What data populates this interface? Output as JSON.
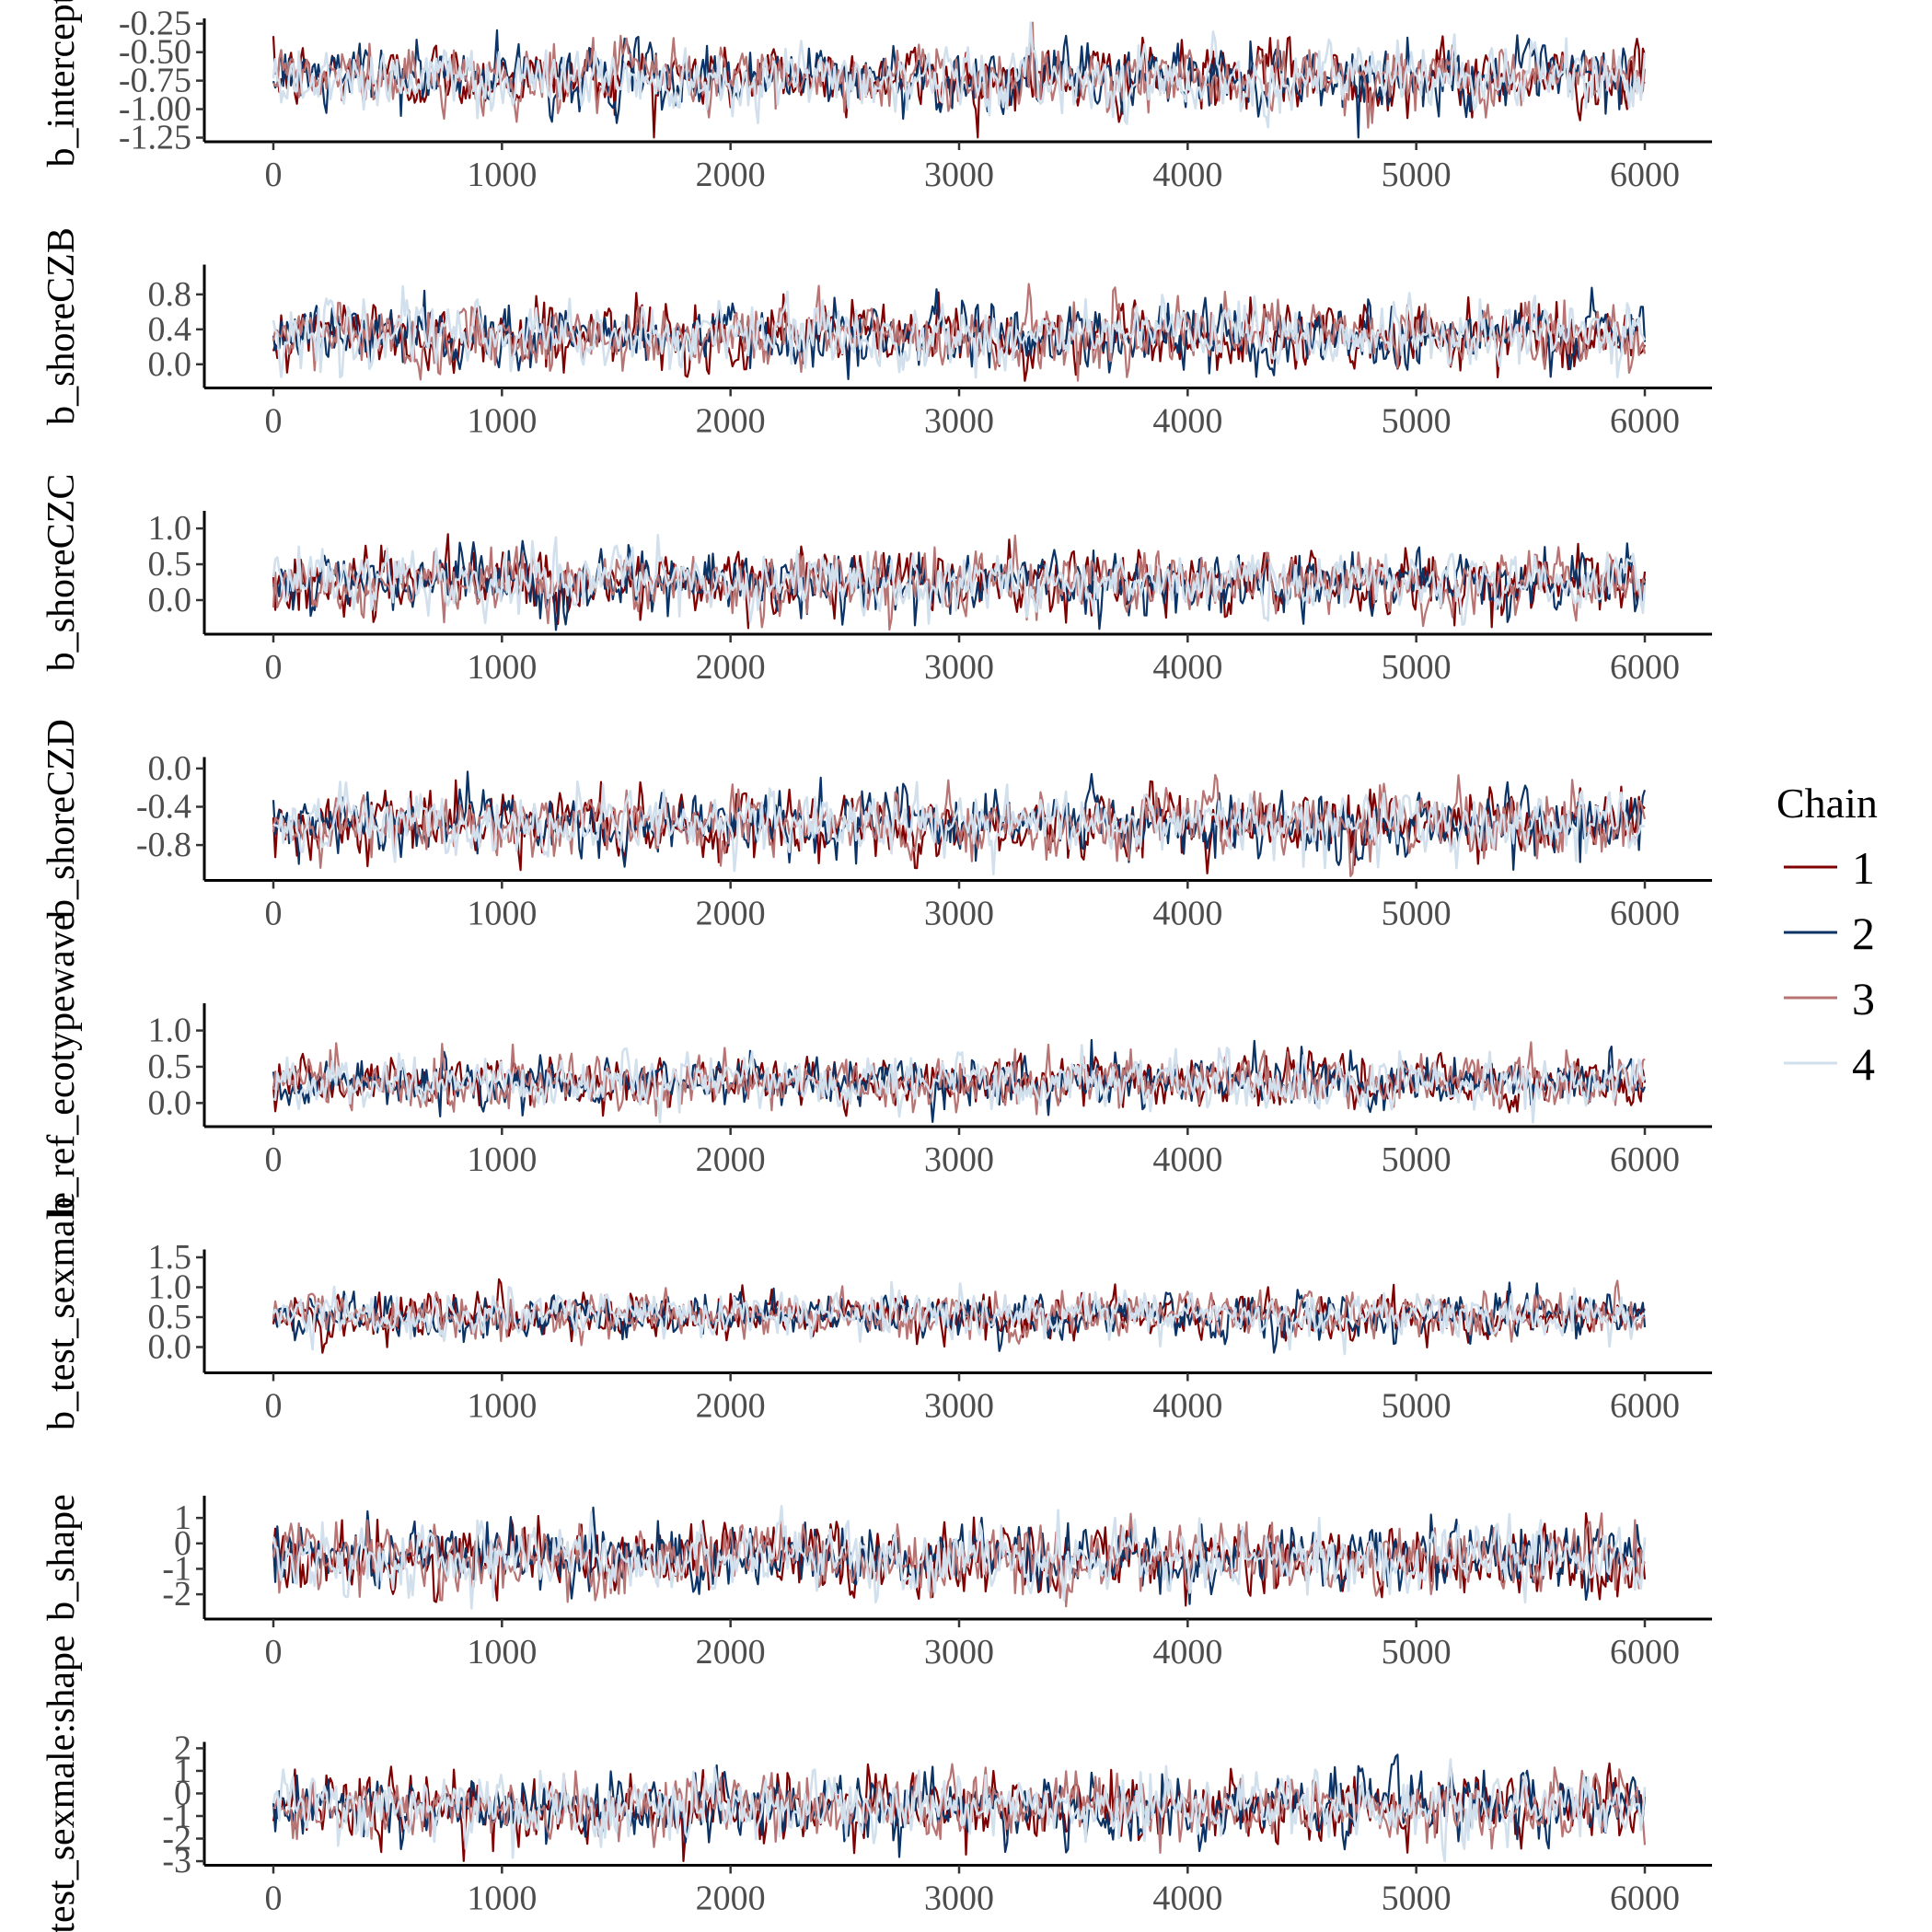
{
  "chart_data": {
    "type": "line",
    "x_range": [
      0,
      6000
    ],
    "x_ticks": [
      "0",
      "1000",
      "2000",
      "3000",
      "4000",
      "5000",
      "6000"
    ],
    "grid": false,
    "legend": {
      "title": "Chain",
      "placement": "right",
      "entries": [
        {
          "label": "1",
          "color": "#7f0000"
        },
        {
          "label": "2",
          "color": "#0b3365"
        },
        {
          "label": "3",
          "color": "#b87373"
        },
        {
          "label": "4",
          "color": "#d1e0ec"
        }
      ]
    },
    "panels": [
      {
        "ylabel": "b_intercept",
        "ylim": [
          -1.27,
          -0.22
        ],
        "y_ticks": [
          {
            "value": -0.25,
            "label": "-0.25"
          },
          {
            "value": -0.5,
            "label": "-0.50"
          },
          {
            "value": -0.75,
            "label": "-0.75"
          },
          {
            "value": -1.0,
            "label": "-1.00"
          },
          {
            "value": -1.25,
            "label": "-1.25"
          }
        ],
        "center": -0.72,
        "spread": 0.13
      },
      {
        "ylabel": "b_shoreCZB",
        "ylim": [
          -0.25,
          1.12
        ],
        "y_ticks": [
          {
            "value": 0.8,
            "label": "0.8"
          },
          {
            "value": 0.4,
            "label": "0.4"
          },
          {
            "value": 0.0,
            "label": "0.0"
          }
        ],
        "center": 0.33,
        "spread": 0.17
      },
      {
        "ylabel": "b_shoreCZC",
        "ylim": [
          -0.45,
          1.22
        ],
        "y_ticks": [
          {
            "value": 1.0,
            "label": "1.0"
          },
          {
            "value": 0.5,
            "label": "0.5"
          },
          {
            "value": 0.0,
            "label": "0.0"
          }
        ],
        "center": 0.25,
        "spread": 0.19
      },
      {
        "ylabel": "b_shoreCZD",
        "ylim": [
          -1.15,
          0.1
        ],
        "y_ticks": [
          {
            "value": 0.0,
            "label": "0.0"
          },
          {
            "value": -0.4,
            "label": "-0.4"
          },
          {
            "value": -0.8,
            "label": "-0.8"
          }
        ],
        "center": -0.57,
        "spread": 0.15
      },
      {
        "ylabel": "b_ref_ecotypewave",
        "ylim": [
          -0.3,
          1.35
        ],
        "y_ticks": [
          {
            "value": 1.0,
            "label": "1.0"
          },
          {
            "value": 0.5,
            "label": "0.5"
          },
          {
            "value": 0.0,
            "label": "0.0"
          }
        ],
        "center": 0.29,
        "spread": 0.16
      },
      {
        "ylabel": "b_test_sexmale",
        "ylim": [
          -0.4,
          1.6
        ],
        "y_ticks": [
          {
            "value": 1.5,
            "label": "1.5"
          },
          {
            "value": 1.0,
            "label": "1.0"
          },
          {
            "value": 0.5,
            "label": "0.5"
          },
          {
            "value": 0.0,
            "label": "0.0"
          }
        ],
        "center": 0.53,
        "spread": 0.17
      },
      {
        "ylabel": "b_shape",
        "ylim": [
          -2.9,
          1.8
        ],
        "y_ticks": [
          {
            "value": 1,
            "label": "1"
          },
          {
            "value": 0,
            "label": "0"
          },
          {
            "value": -1,
            "label": "-1"
          },
          {
            "value": -2,
            "label": "-2"
          }
        ],
        "center": -0.55,
        "spread": 0.6
      },
      {
        "ylabel": "b_test_sexmale:shape",
        "ylim": [
          -3.1,
          2.2
        ],
        "y_ticks": [
          {
            "value": 2,
            "label": "2"
          },
          {
            "value": 1,
            "label": "1"
          },
          {
            "value": 0,
            "label": "0"
          },
          {
            "value": -1,
            "label": "-1"
          },
          {
            "value": -2,
            "label": "-2"
          },
          {
            "value": -3,
            "label": "-3"
          }
        ],
        "center": -0.6,
        "spread": 0.65
      }
    ]
  }
}
